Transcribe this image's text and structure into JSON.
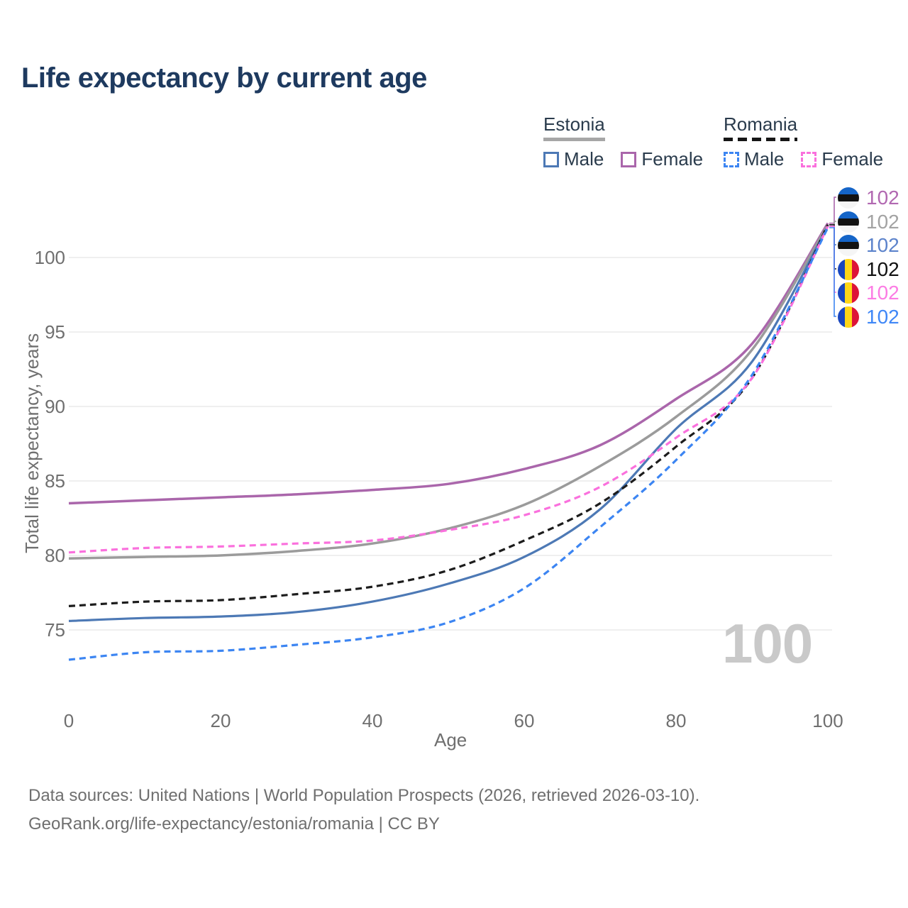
{
  "title": "Life expectancy by current age",
  "legend": {
    "estonia": {
      "label": "Estonia",
      "line_style": "solid",
      "line_color": "#9b9b9b"
    },
    "romania": {
      "label": "Romania",
      "line_style": "dashed",
      "line_color": "#1c1c1c"
    },
    "male_label": "Male",
    "female_label": "Female",
    "estonia_male_color": "#4d79b5",
    "estonia_female_color": "#aa66ab",
    "romania_male_color": "#3c85f2",
    "romania_female_color": "#fa70dd"
  },
  "colors": {
    "title": "#1e3a5f",
    "axis_text": "#6f6f6f",
    "gridline": "#eaeaea",
    "watermark": "#c9c9c9",
    "legend_text": "#2a3b4c",
    "estonia_flag": [
      "#1565c8",
      "#121212",
      "#f5f5f5"
    ],
    "romania_flag": [
      "#1946be",
      "#ffd617",
      "#dd1438"
    ]
  },
  "watermark_label": "100",
  "chart_data": {
    "type": "line",
    "title": "Life expectancy by current age",
    "xlabel": "Age",
    "ylabel": "Total life expectancy, years",
    "x": [
      0,
      10,
      20,
      30,
      40,
      50,
      60,
      70,
      80,
      90,
      100
    ],
    "xlim": [
      0,
      100
    ],
    "ylim": [
      72,
      103.5
    ],
    "xticks": [
      "0",
      "20",
      "40",
      "60",
      "80",
      "100"
    ],
    "xtick_values": [
      0,
      20,
      40,
      60,
      80,
      100
    ],
    "yticks": [
      "75",
      "80",
      "85",
      "90",
      "95",
      "100"
    ],
    "ytick_values": [
      75,
      80,
      85,
      90,
      95,
      100
    ],
    "grid": "horizontal",
    "legend_position": "top-right",
    "series": [
      {
        "name": "estonia-female",
        "country": "Estonia",
        "sex": "Female",
        "style": "solid",
        "color": "#aa66ab",
        "width": 3.5,
        "end_label": "102",
        "end_label_color": "#b168b1",
        "flag": "estonia",
        "values": [
          83.5,
          83.7,
          83.9,
          84.1,
          84.4,
          84.8,
          85.8,
          87.4,
          90.5,
          94.2,
          102.3
        ]
      },
      {
        "name": "estonia-both-sexes",
        "country": "Estonia",
        "sex": "Both",
        "style": "solid",
        "color": "#9b9b9b",
        "width": 3.5,
        "end_label": "102",
        "end_label_color": "#a3a3a3",
        "flag": "estonia",
        "values": [
          79.8,
          79.9,
          80.0,
          80.3,
          80.8,
          81.8,
          83.4,
          86.0,
          89.3,
          93.8,
          102.2
        ]
      },
      {
        "name": "estonia-male",
        "country": "Estonia",
        "sex": "Male",
        "style": "solid",
        "color": "#4d79b5",
        "width": 3.2,
        "end_label": "102",
        "end_label_color": "#5c83cb",
        "flag": "estonia",
        "values": [
          75.6,
          75.8,
          75.9,
          76.2,
          76.9,
          78.1,
          79.9,
          83.1,
          88.5,
          93.0,
          102.1
        ]
      },
      {
        "name": "romania-both-sexes",
        "country": "Romania",
        "sex": "Both",
        "style": "dashed",
        "color": "#1c1c1c",
        "width": 3.2,
        "end_label": "102",
        "end_label_color": "#111111",
        "flag": "romania",
        "values": [
          76.6,
          76.9,
          77.0,
          77.4,
          77.9,
          79.0,
          81.0,
          83.5,
          87.3,
          91.9,
          102.2
        ]
      },
      {
        "name": "romania-female",
        "country": "Romania",
        "sex": "Female",
        "style": "dashed",
        "color": "#fa70dd",
        "width": 3.2,
        "end_label": "102",
        "end_label_color": "#fc7ce4",
        "flag": "romania",
        "values": [
          80.2,
          80.5,
          80.6,
          80.8,
          81.0,
          81.7,
          82.7,
          84.6,
          87.9,
          91.9,
          102.1
        ]
      },
      {
        "name": "romania-male",
        "country": "Romania",
        "sex": "Male",
        "style": "dashed",
        "color": "#3c85f2",
        "width": 3.2,
        "end_label": "102",
        "end_label_color": "#3f87f7",
        "flag": "romania",
        "values": [
          73.0,
          73.5,
          73.6,
          74.0,
          74.5,
          75.5,
          77.8,
          81.9,
          86.4,
          92.1,
          102.0
        ]
      }
    ],
    "hover_x_label": "100"
  },
  "footer": {
    "line1": "Data sources: United Nations | World Population Prospects (2026, retrieved 2026-03-10).",
    "line2": "GeoRank.org/life-expectancy/estonia/romania | CC BY"
  }
}
